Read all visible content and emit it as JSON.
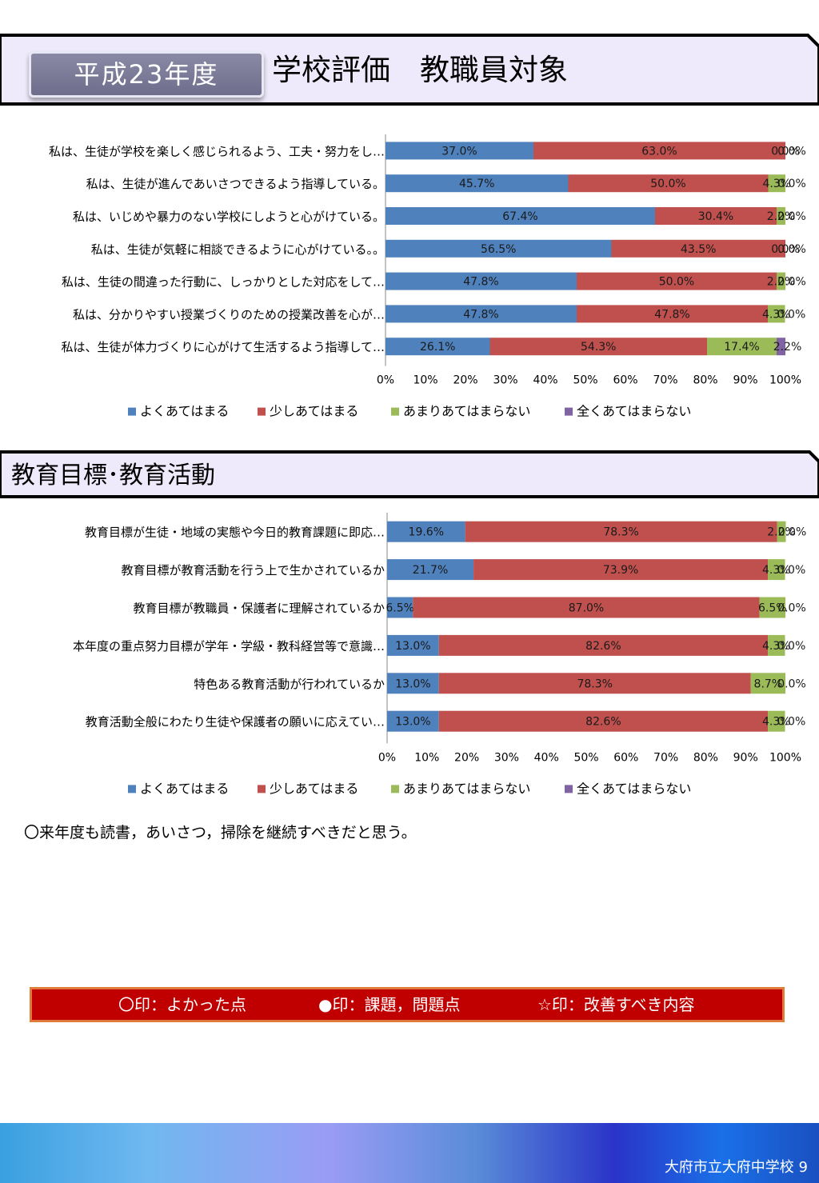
{
  "header": {
    "year_label": "平成23年度",
    "title": "学校評価　教職員対象",
    "section2_title": "教育目標･教育活動"
  },
  "chart_data": [
    {
      "type": "bar",
      "orientation": "horizontal-stacked-100",
      "categories": [
        "私は、生徒が学校を楽しく感じられるよう、工夫・努力をし…",
        "私は、生徒が進んであいさつできるよう指導している。",
        "私は、いじめや暴力のない学校にしようと心がけている。",
        "私は、生徒が気軽に相談できるように心がけている。。",
        "私は、生徒の間違った行動に、しっかりとした対応をして…",
        "私は、分かりやすい授業づくりのための授業改善を心が…",
        "私は、生徒が体力づくりに心がけて生活するよう指導して…"
      ],
      "series": [
        {
          "name": "よくあてはまる",
          "values": [
            37.0,
            45.7,
            67.4,
            56.5,
            47.8,
            47.8,
            26.1
          ]
        },
        {
          "name": "少しあてはまる",
          "values": [
            63.0,
            50.0,
            30.4,
            43.5,
            50.0,
            47.8,
            54.3
          ]
        },
        {
          "name": "あまりあてはまらない",
          "values": [
            0.0,
            4.3,
            2.2,
            0.0,
            2.2,
            4.3,
            17.4
          ]
        },
        {
          "name": "全くあてはまらない",
          "values": [
            0.0,
            0.0,
            0.0,
            0.0,
            0.0,
            0.0,
            2.2
          ]
        }
      ],
      "xlim": [
        0,
        100
      ],
      "x_ticks": [
        "0%",
        "10%",
        "20%",
        "30%",
        "40%",
        "50%",
        "60%",
        "70%",
        "80%",
        "90%",
        "100%"
      ],
      "legend": "bottom"
    },
    {
      "type": "bar",
      "orientation": "horizontal-stacked-100",
      "categories": [
        "教育目標が生徒・地域の実態や今日的教育課題に即応…",
        "教育目標が教育活動を行う上で生かされているか",
        "教育目標が教職員・保護者に理解されているか",
        "本年度の重点努力目標が学年・学級・教科経営等で意識…",
        "特色ある教育活動が行われているか",
        "教育活動全般にわたり生徒や保護者の願いに応えてい…"
      ],
      "series": [
        {
          "name": "よくあてはまる",
          "values": [
            19.6,
            21.7,
            6.5,
            13.0,
            13.0,
            13.0
          ]
        },
        {
          "name": "少しあてはまる",
          "values": [
            78.3,
            73.9,
            87.0,
            82.6,
            78.3,
            82.6
          ]
        },
        {
          "name": "あまりあてはまらない",
          "values": [
            2.2,
            4.3,
            6.5,
            4.3,
            8.7,
            4.3
          ]
        },
        {
          "name": "全くあてはまらない",
          "values": [
            0.0,
            0.0,
            0.0,
            0.0,
            0.0,
            0.0
          ]
        }
      ],
      "xlim": [
        0,
        100
      ],
      "x_ticks": [
        "0%",
        "10%",
        "20%",
        "30%",
        "40%",
        "50%",
        "60%",
        "70%",
        "80%",
        "90%",
        "100%"
      ],
      "legend": "bottom"
    }
  ],
  "colors": {
    "series": [
      "#4f81bd",
      "#c0504d",
      "#9bbb59",
      "#8064a2"
    ],
    "legend_box": "#c00000",
    "banner_fill": "#efeafb"
  },
  "comment": "〇来年度も読書，あいさつ，掃除を継続すべきだと思う。",
  "legend_box": {
    "good": "〇印：よかった点",
    "issue": "●印：課題，問題点",
    "improve": "☆印：改善すべき内容"
  },
  "footer": {
    "school": "大府市立大府中学校",
    "page": "9"
  }
}
